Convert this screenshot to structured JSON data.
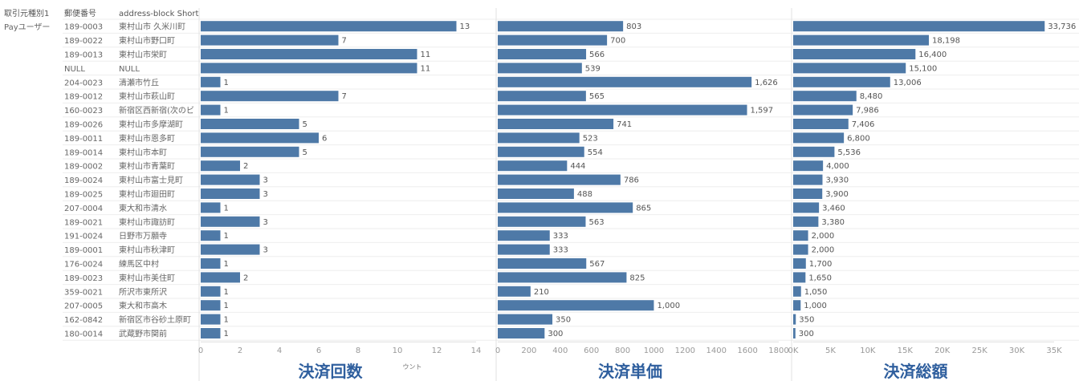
{
  "header": {
    "col_source": "取引元種別1",
    "col_postal": "郵便番号",
    "col_address": "address-block Short"
  },
  "source_value": "Payユーザー",
  "chart_data": {
    "type": "bar",
    "orientation": "horizontal",
    "bar_color": "#4e79a7",
    "rows": [
      {
        "postal": "189-0003",
        "address": "東村山市 久米川町"
      },
      {
        "postal": "189-0022",
        "address": "東村山市野口町"
      },
      {
        "postal": "189-0013",
        "address": "東村山市栄町"
      },
      {
        "postal": "NULL",
        "address": "NULL"
      },
      {
        "postal": "204-0023",
        "address": "清瀬市竹丘"
      },
      {
        "postal": "189-0012",
        "address": "東村山市萩山町"
      },
      {
        "postal": "160-0023",
        "address": "新宿区西新宿(次のビ"
      },
      {
        "postal": "189-0026",
        "address": "東村山市多摩湖町"
      },
      {
        "postal": "189-0011",
        "address": "東村山市恩多町"
      },
      {
        "postal": "189-0014",
        "address": "東村山市本町"
      },
      {
        "postal": "189-0002",
        "address": "東村山市青葉町"
      },
      {
        "postal": "189-0024",
        "address": "東村山市富士見町"
      },
      {
        "postal": "189-0025",
        "address": "東村山市廻田町"
      },
      {
        "postal": "207-0004",
        "address": "東大和市清水"
      },
      {
        "postal": "189-0021",
        "address": "東村山市諏訪町"
      },
      {
        "postal": "191-0024",
        "address": "日野市万願寺"
      },
      {
        "postal": "189-0001",
        "address": "東村山市秋津町"
      },
      {
        "postal": "176-0024",
        "address": "練馬区中村"
      },
      {
        "postal": "189-0023",
        "address": "東村山市美住町"
      },
      {
        "postal": "359-0021",
        "address": "所沢市東所沢"
      },
      {
        "postal": "207-0005",
        "address": "東大和市高木"
      },
      {
        "postal": "162-0842",
        "address": "新宿区市谷砂土原町"
      },
      {
        "postal": "180-0014",
        "address": "武蔵野市関前"
      }
    ],
    "panels": [
      {
        "title": "決済回数",
        "small_label": "ウント",
        "xlim": [
          0,
          14
        ],
        "ticks": [
          0,
          2,
          4,
          6,
          8,
          10,
          12,
          14
        ],
        "tick_labels": [
          "0",
          "2",
          "4",
          "6",
          "8",
          "10",
          "12",
          "14"
        ],
        "values": [
          13,
          7,
          11,
          11,
          1,
          7,
          1,
          5,
          6,
          5,
          2,
          3,
          3,
          1,
          3,
          1,
          3,
          1,
          2,
          1,
          1,
          1,
          1
        ],
        "labels": [
          "13",
          "7",
          "11",
          "11",
          "1",
          "7",
          "1",
          "5",
          "6",
          "5",
          "2",
          "3",
          "3",
          "1",
          "3",
          "1",
          "3",
          "1",
          "2",
          "1",
          "1",
          "1",
          "1"
        ]
      },
      {
        "title": "決済単価",
        "small_label": "",
        "xlim": [
          0,
          1800
        ],
        "ticks": [
          0,
          200,
          400,
          600,
          800,
          1000,
          1200,
          1400,
          1600,
          1800
        ],
        "tick_labels": [
          "0",
          "200",
          "400",
          "600",
          "800",
          "1000",
          "1200",
          "1400",
          "1600",
          "1800"
        ],
        "values": [
          803,
          700,
          566,
          539,
          1626,
          565,
          1597,
          741,
          523,
          554,
          444,
          786,
          488,
          865,
          563,
          333,
          333,
          567,
          825,
          210,
          1000,
          350,
          300
        ],
        "labels": [
          "803",
          "700",
          "566",
          "539",
          "1,626",
          "565",
          "1,597",
          "741",
          "523",
          "554",
          "444",
          "786",
          "488",
          "865",
          "563",
          "333",
          "333",
          "567",
          "825",
          "210",
          "1,000",
          "350",
          "300"
        ]
      },
      {
        "title": "決済総額",
        "small_label": "",
        "xlim": [
          0,
          35000
        ],
        "ticks": [
          0,
          5000,
          10000,
          15000,
          20000,
          25000,
          30000,
          35000
        ],
        "tick_labels": [
          "0K",
          "5K",
          "10K",
          "15K",
          "20K",
          "25K",
          "30K",
          "35K"
        ],
        "values": [
          33736,
          18198,
          16400,
          15100,
          13006,
          8480,
          7986,
          7406,
          6800,
          5536,
          4000,
          3930,
          3900,
          3460,
          3380,
          2000,
          2000,
          1700,
          1650,
          1050,
          1000,
          350,
          300
        ],
        "labels": [
          "33,736",
          "18,198",
          "16,400",
          "15,100",
          "13,006",
          "8,480",
          "7,986",
          "7,406",
          "6,800",
          "5,536",
          "4,000",
          "3,930",
          "3,900",
          "3,460",
          "3,380",
          "2,000",
          "2,000",
          "1,700",
          "1,650",
          "1,050",
          "1,000",
          "350",
          "300"
        ]
      }
    ]
  }
}
